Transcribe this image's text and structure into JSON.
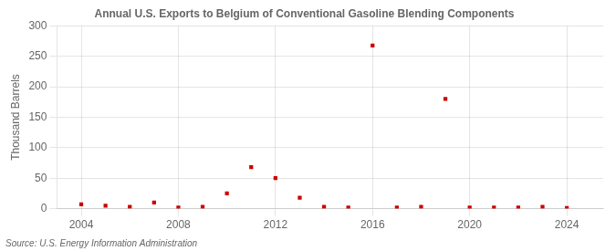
{
  "chart_data": {
    "type": "scatter",
    "title": "Annual U.S. Exports to Belgium of Conventional Gasoline Blending Components",
    "ylabel": "Thousand Barrels",
    "source": "Source: U.S. Energy Information Administration",
    "x": [
      2004,
      2005,
      2006,
      2007,
      2008,
      2009,
      2010,
      2011,
      2012,
      2013,
      2014,
      2015,
      2016,
      2017,
      2018,
      2019,
      2020,
      2021,
      2022,
      2023,
      2024
    ],
    "values": [
      7,
      5,
      3,
      10,
      2,
      3,
      25,
      68,
      50,
      18,
      3,
      2,
      268,
      2,
      3,
      180,
      2,
      2,
      2,
      3,
      1
    ],
    "color": "#cc0000",
    "marker": "square",
    "xlim": [
      2003.0,
      2025.5
    ],
    "xticks": [
      2004,
      2008,
      2012,
      2016,
      2020,
      2024
    ],
    "ylim": [
      0,
      300
    ],
    "yticks": [
      0,
      50,
      100,
      150,
      200,
      250,
      300
    ],
    "grid": true
  }
}
